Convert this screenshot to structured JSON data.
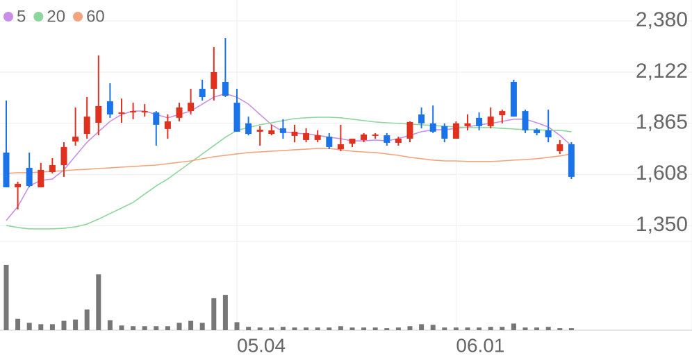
{
  "chart_data": {
    "type": "candlestick",
    "categories": [
      null,
      null,
      null,
      null,
      null,
      null,
      null,
      null,
      null,
      null,
      null,
      null,
      null,
      null,
      null,
      null,
      null,
      null,
      null,
      null,
      "05.04",
      null,
      null,
      null,
      null,
      null,
      null,
      null,
      null,
      null,
      null,
      null,
      null,
      null,
      null,
      null,
      null,
      null,
      null,
      "06.01",
      null,
      null,
      null,
      null,
      null,
      null,
      null,
      null,
      null,
      null
    ],
    "open": [
      1717,
      1542,
      1640,
      1542,
      1619,
      1654,
      1773,
      1811,
      1867,
      1975,
      1912,
      1919,
      1919,
      1919,
      1836,
      1892,
      1926,
      2038,
      2038,
      2073,
      1968,
      1864,
      1822,
      1811,
      1839,
      1801,
      1780,
      1780,
      1797,
      1734,
      1762,
      1780,
      1801,
      1804,
      1766,
      1787,
      1909,
      1864,
      1850,
      1787,
      1850,
      1892,
      1850,
      1905,
      2073,
      1926,
      1832,
      1829,
      1724,
      1759
    ],
    "high": [
      1979,
      1570,
      1717,
      1665,
      1689,
      1769,
      1944,
      1996,
      2206,
      2066,
      1989,
      1968,
      1961,
      1926,
      1909,
      1968,
      2038,
      2084,
      2248,
      2293,
      2038,
      1898,
      1850,
      1857,
      1885,
      1857,
      1839,
      1829,
      1815,
      1857,
      1787,
      1815,
      1815,
      1815,
      1797,
      1874,
      1944,
      1954,
      1864,
      1874,
      1909,
      1919,
      1944,
      1933,
      2084,
      1933,
      1839,
      1933,
      1780,
      1769
    ],
    "low": [
      1542,
      1431,
      1542,
      1542,
      1612,
      1595,
      1752,
      1787,
      1804,
      1892,
      1867,
      1885,
      1898,
      1752,
      1787,
      1874,
      1909,
      1979,
      1979,
      1996,
      1822,
      1804,
      1752,
      1804,
      1787,
      1769,
      1769,
      1769,
      1734,
      1724,
      1745,
      1769,
      1787,
      1752,
      1752,
      1769,
      1839,
      1815,
      1769,
      1787,
      1829,
      1829,
      1839,
      1864,
      1898,
      1815,
      1804,
      1769,
      1710,
      1584
    ],
    "close": [
      1542,
      1560,
      1549,
      1630,
      1654,
      1745,
      1797,
      1898,
      1951,
      1909,
      1919,
      1926,
      1926,
      1857,
      1874,
      1944,
      1968,
      1996,
      2122,
      2003,
      1822,
      1811,
      1832,
      1829,
      1815,
      1822,
      1815,
      1804,
      1745,
      1759,
      1787,
      1808,
      1808,
      1766,
      1787,
      1871,
      1864,
      1822,
      1787,
      1864,
      1864,
      1850,
      1898,
      1926,
      1898,
      1829,
      1815,
      1794,
      1759,
      1595
    ],
    "up_color": "#e0301e",
    "down_color": "#1a73e8",
    "series": [
      {
        "name": "5",
        "color": "#c98fe6",
        "values": [
          1375,
          1445,
          1549,
          1577,
          1584,
          1630,
          1700,
          1769,
          1822,
          1874,
          1909,
          1926,
          1926,
          1909,
          1892,
          1909,
          1926,
          1961,
          1996,
          2014,
          1996,
          1961,
          1909,
          1857,
          1822,
          1815,
          1811,
          1804,
          1794,
          1787,
          1776,
          1776,
          1780,
          1776,
          1787,
          1804,
          1822,
          1832,
          1832,
          1839,
          1846,
          1857,
          1864,
          1874,
          1885,
          1885,
          1867,
          1846,
          1804,
          1752
        ]
      },
      {
        "name": "20",
        "color": "#8dd69c",
        "values": [
          1350,
          1340,
          1333,
          1333,
          1333,
          1336,
          1343,
          1357,
          1382,
          1410,
          1438,
          1466,
          1508,
          1549,
          1584,
          1626,
          1668,
          1710,
          1752,
          1794,
          1829,
          1843,
          1857,
          1867,
          1878,
          1888,
          1892,
          1895,
          1895,
          1892,
          1885,
          1878,
          1871,
          1867,
          1864,
          1860,
          1857,
          1853,
          1850,
          1846,
          1843,
          1843,
          1843,
          1839,
          1836,
          1832,
          1832,
          1829,
          1829,
          1822
        ]
      },
      {
        "name": "60",
        "color": "#f2a57c",
        "values": [
          1612,
          1616,
          1616,
          1619,
          1623,
          1626,
          1630,
          1633,
          1637,
          1640,
          1644,
          1647,
          1651,
          1654,
          1661,
          1668,
          1675,
          1686,
          1696,
          1703,
          1710,
          1717,
          1720,
          1724,
          1727,
          1731,
          1734,
          1738,
          1738,
          1731,
          1724,
          1720,
          1717,
          1710,
          1703,
          1693,
          1686,
          1679,
          1675,
          1675,
          1672,
          1672,
          1672,
          1675,
          1679,
          1682,
          1686,
          1693,
          1700,
          1710
        ]
      }
    ],
    "volume": [
      98,
      17,
      11,
      9,
      9,
      14,
      16,
      31,
      84,
      15,
      7,
      6,
      6,
      6,
      6,
      11,
      14,
      11,
      48,
      53,
      12,
      5,
      4,
      4,
      5,
      4,
      4,
      4,
      4,
      6,
      4,
      4,
      4,
      3,
      4,
      6,
      9,
      8,
      4,
      4,
      4,
      4,
      5,
      5,
      10,
      4,
      4,
      5,
      3,
      3
    ],
    "volume_color": "#777777",
    "vlim": [
      0,
      100
    ],
    "ylim": [
      1270,
      2485
    ],
    "yticks": [
      {
        "value": 1350,
        "label": "1,350"
      },
      {
        "value": 1608,
        "label": "1,608"
      },
      {
        "value": 1865,
        "label": "1,865"
      },
      {
        "value": 2122,
        "label": "2,122"
      },
      {
        "value": 2380,
        "label": "2,380"
      }
    ],
    "grid": true
  }
}
